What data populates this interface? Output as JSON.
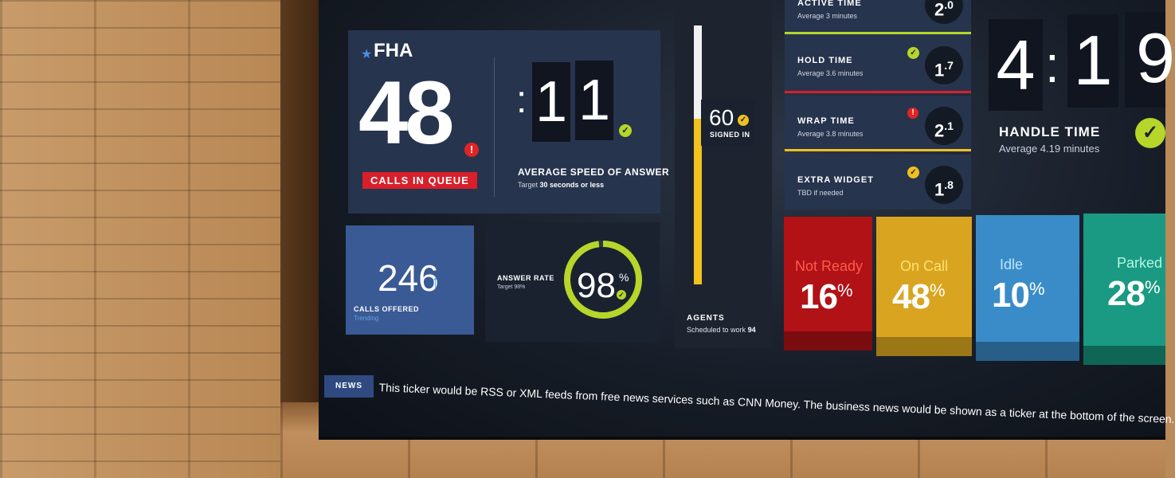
{
  "queue": {
    "title": "FHA",
    "calls_in_queue": "48",
    "calls_in_queue_label": "CALLS IN QUEUE",
    "alert_icon": "alert-icon"
  },
  "asa": {
    "colon": ":",
    "digit1": "1",
    "digit2": "1",
    "label": "AVERAGE SPEED OF ANSWER",
    "target_prefix": "Target",
    "target_value": "30 seconds or less"
  },
  "calls_offered": {
    "value": "246",
    "arrow": "↑",
    "label": "CALLS OFFERED",
    "sub": "Trending"
  },
  "answer_rate": {
    "label": "ANSWER RATE",
    "target": "Target 98%",
    "value": "98",
    "unit": "%",
    "progress": 0.98
  },
  "agents": {
    "signed_in": "60",
    "signed_in_label": "SIGNED IN",
    "label": "AGENTS",
    "scheduled_prefix": "Scheduled to work",
    "scheduled_value": "94",
    "signed_fraction": 0.64
  },
  "metrics": [
    {
      "title": "ACTIVE TIME",
      "sub": "Average 3 minutes",
      "value_main": "2",
      "value_sup": ".0",
      "status": "ok",
      "rule_color": "#b6d62a"
    },
    {
      "title": "HOLD TIME",
      "sub": "Average 3.6 minutes",
      "value_main": "1",
      "value_sup": ".7",
      "status": "ok",
      "rule_color": "#d81f2a"
    },
    {
      "title": "WRAP TIME",
      "sub": "Average 3.8 minutes",
      "value_main": "2",
      "value_sup": ".1",
      "status": "alert",
      "rule_color": "#f0c020"
    },
    {
      "title": "EXTRA WIDGET",
      "sub": "TBD if needed",
      "value_main": "1",
      "value_sup": ".8",
      "status": "warn",
      "rule_color": ""
    }
  ],
  "handle_time": {
    "digit_m": "4",
    "colon": ":",
    "digit_s1": "1",
    "digit_s2": "9",
    "title": "HANDLE TIME",
    "sub": "Average 4.19 minutes"
  },
  "statuses": [
    {
      "name": "Not Ready",
      "value": "16",
      "unit": "%",
      "color": "#b01216",
      "foot": "#7a0c0f",
      "name_color": "#ff5a4a"
    },
    {
      "name": "On Call",
      "value": "48",
      "unit": "%",
      "color": "#d9a520",
      "foot": "#9c7716",
      "name_color": "#ffe070"
    },
    {
      "name": "Idle",
      "value": "10",
      "unit": "%",
      "color": "#3a8cc8",
      "foot": "#275f88",
      "name_color": "#bfe4ff"
    },
    {
      "name": "Parked",
      "value": "28",
      "unit": "%",
      "color": "#1a9a82",
      "foot": "#106655",
      "name_color": "#b5f5e5"
    }
  ],
  "news": {
    "tag": "NEWS",
    "ticker": "This ticker would be RSS or XML feeds from free news services such as CNN Money. The business news would be shown as a ticker at the bottom of the screen."
  },
  "colors": {
    "panel_navy": "#27344d",
    "panel_dark": "#1a2230",
    "check_green": "#b6d62a",
    "check_yellow": "#f0c020",
    "alert_red": "#e02424"
  }
}
